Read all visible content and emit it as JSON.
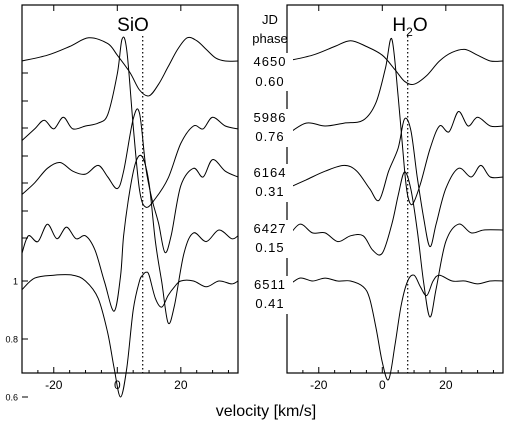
{
  "chart_data": {
    "type": "line",
    "xlabel": "velocity [km/s]",
    "panels": [
      {
        "title": "SiO",
        "xlim": [
          -30,
          38
        ],
        "xticks": [
          -20,
          0,
          20
        ],
        "xtick_labels": [
          "-20",
          "0",
          "20"
        ],
        "ref_velocity": 8
      },
      {
        "title": "H2O",
        "title_main": "H",
        "title_sub": "2",
        "title_tail": "O",
        "xlim": [
          -30,
          38
        ],
        "xticks": [
          -20,
          0,
          20
        ],
        "xtick_labels": [
          "-20",
          "0",
          "20"
        ],
        "ref_velocity": 8
      }
    ],
    "y_ticks": [
      {
        "value": 1,
        "label": "1"
      },
      {
        "value": 0.8,
        "label": "0.8"
      },
      {
        "value": 0.6,
        "label": "0.6"
      }
    ],
    "header": {
      "jd_label": "JD",
      "phase_label": "phase"
    },
    "epochs": [
      {
        "jd": "4650",
        "phase": "0.60",
        "sio": {
          "x": [
            -30,
            -22,
            -15,
            -9,
            -3,
            0,
            4,
            7,
            10,
            13,
            16,
            19,
            22,
            25,
            28,
            31,
            34,
            38
          ],
          "y": [
            1.0,
            1.02,
            1.05,
            1.08,
            1.06,
            1.02,
            0.96,
            0.9,
            0.88,
            0.92,
            0.98,
            1.04,
            1.08,
            1.07,
            1.04,
            1.01,
            1.0,
            1.0
          ]
        },
        "h2o": {
          "x": [
            -30,
            -22,
            -15,
            -10,
            -5,
            0,
            4,
            7,
            10,
            14,
            18,
            22,
            26,
            30,
            34,
            38
          ],
          "y": [
            1.0,
            1.02,
            1.05,
            1.07,
            1.05,
            1.02,
            0.97,
            0.93,
            0.92,
            0.95,
            1.0,
            1.03,
            1.04,
            1.02,
            1.0,
            1.0
          ]
        }
      },
      {
        "jd": "5986",
        "phase": "0.76",
        "sio": {
          "x": [
            -30,
            -26,
            -23,
            -20,
            -17,
            -14,
            -10,
            -6,
            -3,
            0,
            1.5,
            3,
            5,
            7,
            9,
            12,
            16,
            20,
            24,
            27,
            30,
            34,
            38
          ],
          "y": [
            0.95,
            0.99,
            1.02,
            0.99,
            1.03,
            0.99,
            1.0,
            1.01,
            1.04,
            1.18,
            1.3,
            1.26,
            1.0,
            0.78,
            0.72,
            0.75,
            0.82,
            0.94,
            1.0,
            0.99,
            1.03,
            1.0,
            0.99
          ]
        },
        "h2o": {
          "x": [
            -30,
            -24,
            -18,
            -12,
            -6,
            -2,
            1,
            3,
            5,
            7,
            8,
            9.5,
            12,
            15,
            18,
            21,
            24,
            27,
            30,
            34,
            38
          ],
          "y": [
            0.97,
            1.01,
            1.0,
            1.01,
            1.02,
            1.08,
            1.2,
            1.3,
            1.1,
            0.85,
            0.76,
            0.73,
            0.8,
            0.92,
            1.0,
            0.98,
            1.05,
            1.0,
            1.03,
            1.0,
            1.0
          ]
        }
      },
      {
        "jd": "6164",
        "phase": "0.31",
        "sio": {
          "x": [
            -30,
            -26,
            -22,
            -18,
            -14,
            -10,
            -6,
            -3,
            0,
            2,
            5,
            7,
            9,
            11,
            13,
            15,
            17,
            20,
            24,
            27,
            30,
            34,
            38
          ],
          "y": [
            0.94,
            0.98,
            1.03,
            1.05,
            1.02,
            1.01,
            1.04,
            1.0,
            0.96,
            1.02,
            1.2,
            1.22,
            1.03,
            0.92,
            0.84,
            0.74,
            0.8,
            0.97,
            1.03,
            1.0,
            1.06,
            1.02,
            1.0
          ]
        },
        "h2o": {
          "x": [
            -30,
            -24,
            -18,
            -12,
            -8,
            -4,
            -1,
            2,
            5,
            7,
            9,
            11,
            13,
            15,
            17,
            20,
            24,
            28,
            31,
            34,
            38
          ],
          "y": [
            0.96,
            0.99,
            1.02,
            1.04,
            1.02,
            0.96,
            0.92,
            1.02,
            1.1,
            1.2,
            1.16,
            1.0,
            0.86,
            0.76,
            0.84,
            0.96,
            1.03,
            1.0,
            1.04,
            1.0,
            1.0
          ]
        }
      },
      {
        "jd": "6427",
        "phase": "0.15",
        "sio": {
          "x": [
            -30,
            -28,
            -25,
            -22,
            -19,
            -16,
            -13,
            -10,
            -7,
            -4,
            -1,
            1,
            2,
            4,
            6,
            8,
            10,
            12,
            14,
            16,
            18,
            21,
            24,
            28,
            32,
            36,
            38
          ],
          "y": [
            0.92,
            0.98,
            0.96,
            1.02,
            0.97,
            1.01,
            0.97,
            0.98,
            0.93,
            0.82,
            0.72,
            0.84,
            0.98,
            1.14,
            1.24,
            1.25,
            1.16,
            0.96,
            0.82,
            0.68,
            0.74,
            0.92,
            0.99,
            0.96,
            1.0,
            0.97,
            0.98
          ]
        },
        "h2o": {
          "x": [
            -30,
            -26,
            -22,
            -18,
            -14,
            -10,
            -6,
            -3,
            0,
            3,
            5,
            7,
            9,
            11,
            13,
            15,
            17,
            20,
            24,
            28,
            32,
            38
          ],
          "y": [
            0.97,
            1.02,
            0.99,
            0.99,
            0.96,
            0.98,
            0.98,
            0.93,
            0.92,
            1.02,
            1.12,
            1.2,
            1.14,
            1.0,
            0.82,
            0.7,
            0.8,
            0.96,
            1.02,
            0.99,
            1.0,
            1.0
          ]
        }
      },
      {
        "jd": "6511",
        "phase": "0.41",
        "sio": {
          "x": [
            -30,
            -26,
            -20,
            -14,
            -10,
            -6,
            -3,
            -1,
            1,
            3,
            5,
            7,
            8,
            9,
            10,
            12,
            14,
            16,
            18,
            20,
            24,
            28,
            32,
            36,
            38
          ],
          "y": [
            0.97,
            1.01,
            1.02,
            1.02,
            1.0,
            0.94,
            0.82,
            0.7,
            0.6,
            0.7,
            0.9,
            1.0,
            1.02,
            1.03,
            1.02,
            0.94,
            0.91,
            0.95,
            0.98,
            1.0,
            1.0,
            0.98,
            1.0,
            0.99,
            1.0
          ]
        },
        "h2o": {
          "x": [
            -30,
            -26,
            -22,
            -18,
            -14,
            -10,
            -6,
            -4,
            -2,
            0,
            2,
            4,
            6,
            8,
            10,
            12,
            14,
            16,
            18,
            22,
            26,
            30,
            34,
            38
          ],
          "y": [
            0.98,
            1.01,
            1.0,
            1.01,
            1.0,
            1.0,
            0.98,
            0.94,
            0.84,
            0.72,
            0.66,
            0.78,
            0.92,
            1.0,
            1.02,
            0.98,
            0.95,
            1.0,
            1.02,
            1.0,
            1.0,
            0.99,
            1.0,
            1.0
          ]
        }
      }
    ]
  }
}
